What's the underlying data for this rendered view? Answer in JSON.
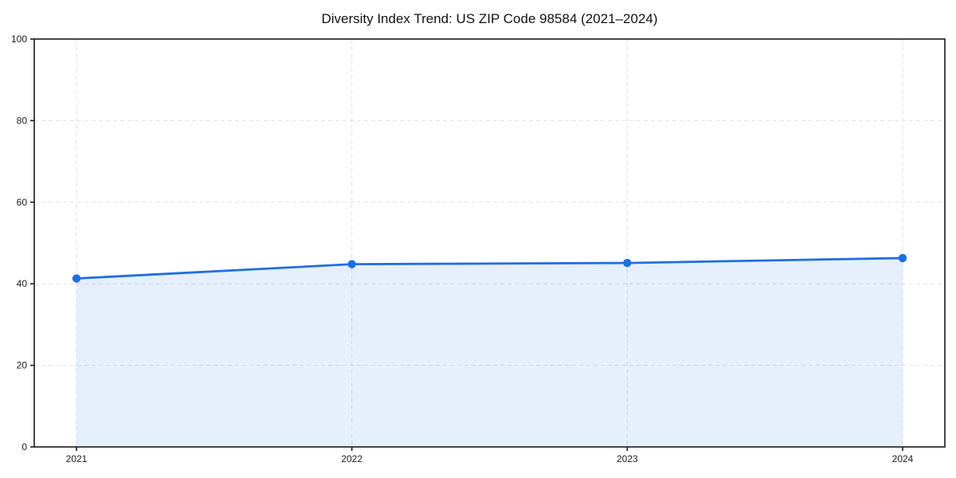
{
  "figure": {
    "background": "#ffffff"
  },
  "chart_data": {
    "type": "area",
    "title": "Diversity Index Trend: US ZIP Code 98584 (2021–2024)",
    "categories": [
      "2021",
      "2022",
      "2023",
      "2024"
    ],
    "series": [
      {
        "name": "Diversity Index",
        "values": [
          41.3,
          44.8,
          45.1,
          46.3
        ]
      }
    ],
    "xlabel": "",
    "ylabel": "",
    "ylim": [
      0,
      100
    ],
    "yticks": [
      0,
      20,
      40,
      60,
      80,
      100
    ],
    "grid": true,
    "grid_style": "dashed",
    "legend": "none",
    "marker": "circle",
    "colors": {
      "line": "#1f6fe0",
      "marker": "#1f6fe0",
      "area_fill": "rgba(31,111,224,0.11)",
      "grid": "#e0e0e0",
      "axis": "#1a1a1a",
      "text": "#1a1a1a",
      "background": "#ffffff"
    }
  }
}
